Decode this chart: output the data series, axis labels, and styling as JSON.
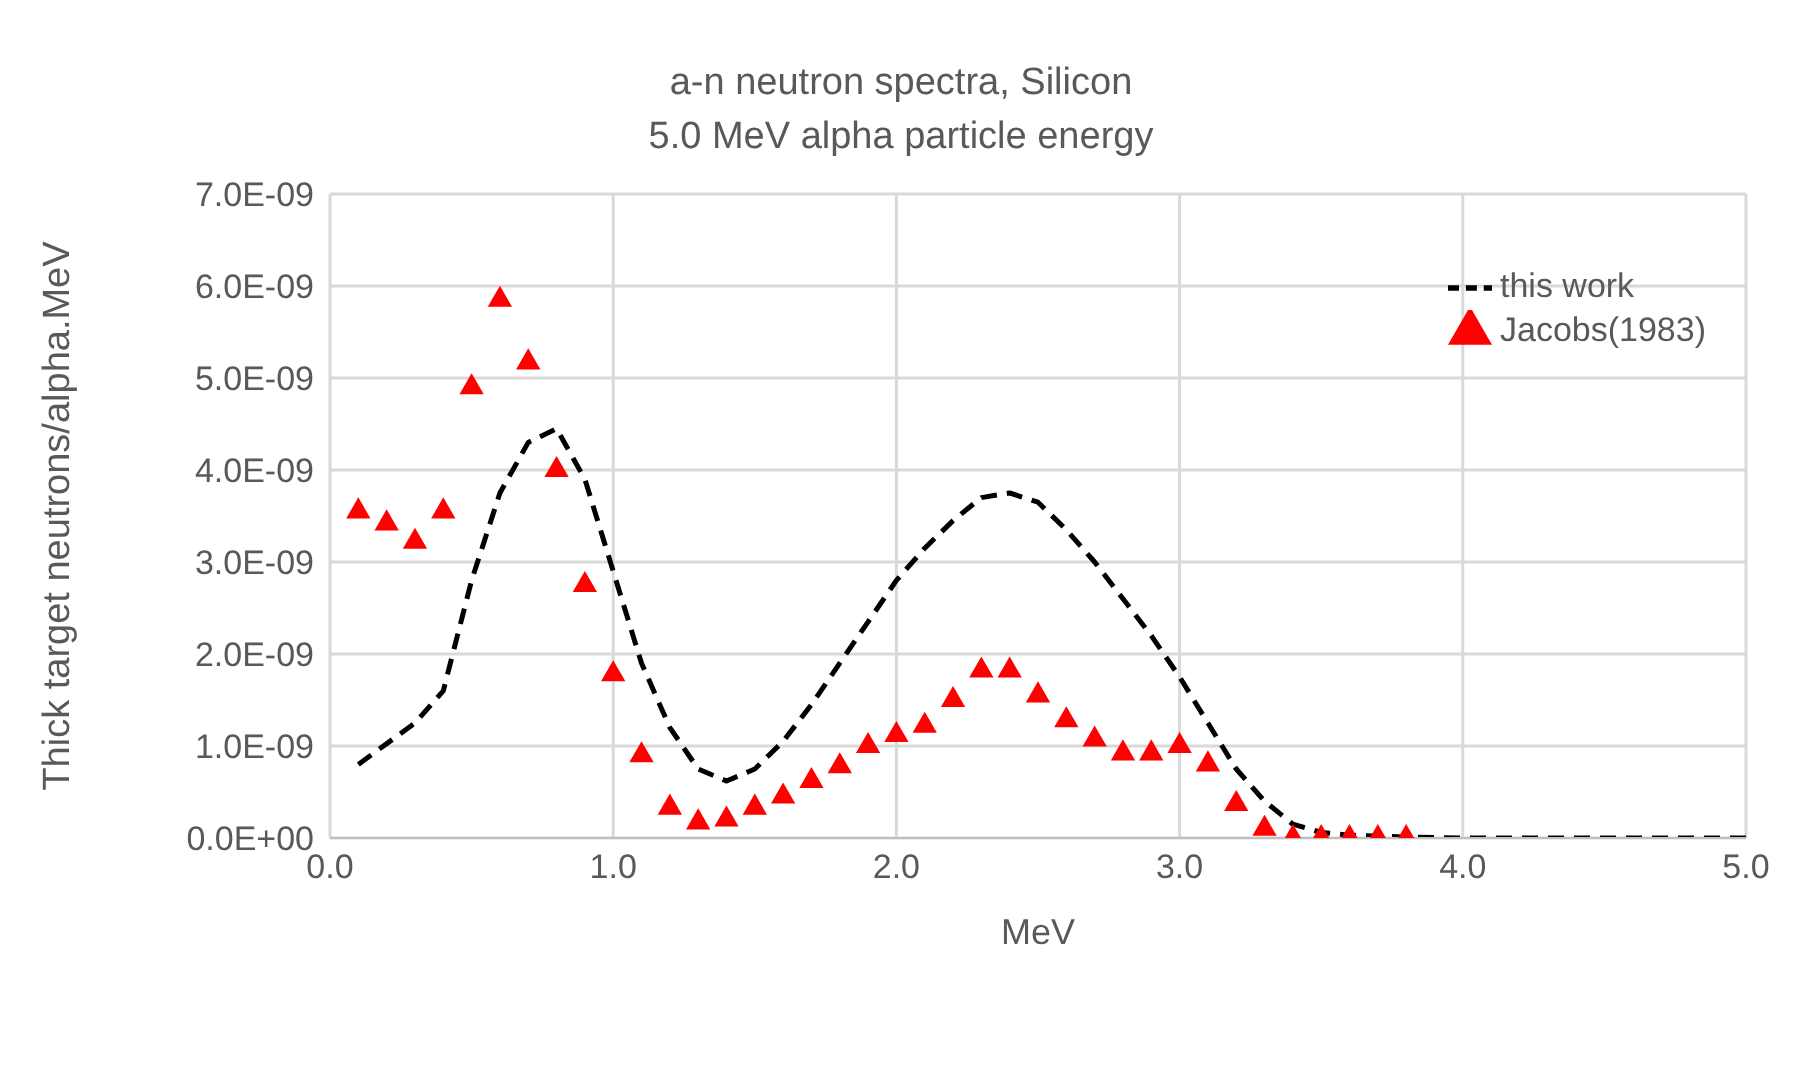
{
  "chart_data": {
    "type": "scatter",
    "title": "a-n neutron spectra, Silicon",
    "subtitle": "5.0 MeV alpha particle energy",
    "xlabel": "MeV",
    "ylabel": "Thick target neutrons/alpha.MeV",
    "xlim": [
      0,
      5
    ],
    "xticks": [
      {
        "value": 0,
        "label": "0.0"
      },
      {
        "value": 1,
        "label": "1.0"
      },
      {
        "value": 2,
        "label": "2.0"
      },
      {
        "value": 3,
        "label": "3.0"
      },
      {
        "value": 4,
        "label": "4.0"
      },
      {
        "value": 5,
        "label": "5.0"
      }
    ],
    "ylim": [
      0,
      7e-09
    ],
    "yticks": [
      {
        "value": 0,
        "label": "0.0E+00"
      },
      {
        "value": 1e-09,
        "label": "1.0E-09"
      },
      {
        "value": 2e-09,
        "label": "2.0E-09"
      },
      {
        "value": 3e-09,
        "label": "3.0E-09"
      },
      {
        "value": 4e-09,
        "label": "4.0E-09"
      },
      {
        "value": 5e-09,
        "label": "5.0E-09"
      },
      {
        "value": 6e-09,
        "label": "6.0E-09"
      },
      {
        "value": 7e-09,
        "label": "7.0E-09"
      }
    ],
    "grid": true,
    "legend": "top right",
    "series": [
      {
        "name": "this work",
        "type": "line",
        "color": "#000000",
        "line_style": "dashed",
        "marker": "none",
        "x": [
          0.1,
          0.3,
          0.4,
          0.5,
          0.6,
          0.7,
          0.8,
          0.9,
          1.0,
          1.1,
          1.2,
          1.3,
          1.4,
          1.5,
          1.6,
          1.7,
          1.8,
          1.9,
          2.0,
          2.1,
          2.2,
          2.3,
          2.4,
          2.5,
          2.6,
          2.7,
          2.8,
          2.9,
          3.0,
          3.1,
          3.2,
          3.3,
          3.4,
          3.5,
          3.6,
          3.8,
          4.0,
          5.0
        ],
        "values": [
          8e-10,
          1.25e-09,
          1.6e-09,
          2.8e-09,
          3.75e-09,
          4.3e-09,
          4.45e-09,
          3.9e-09,
          2.9e-09,
          1.9e-09,
          1.2e-09,
          7.5e-10,
          6.2e-10,
          7.5e-10,
          1.05e-09,
          1.45e-09,
          1.9e-09,
          2.35e-09,
          2.8e-09,
          3.15e-09,
          3.45e-09,
          3.7e-09,
          3.75e-09,
          3.65e-09,
          3.35e-09,
          3e-09,
          2.6e-09,
          2.2e-09,
          1.75e-09,
          1.25e-09,
          7.5e-10,
          4e-10,
          1.5e-10,
          6e-11,
          3e-11,
          1e-11,
          0,
          0
        ]
      },
      {
        "name": "Jacobs(1983)",
        "color": "#ff0000",
        "marker": "triangle",
        "x": [
          0.1,
          0.2,
          0.3,
          0.4,
          0.5,
          0.6,
          0.7,
          0.8,
          0.9,
          1.0,
          1.1,
          1.2,
          1.3,
          1.4,
          1.5,
          1.6,
          1.7,
          1.8,
          1.9,
          2.0,
          2.1,
          2.2,
          2.3,
          2.4,
          2.5,
          2.6,
          2.7,
          2.8,
          2.9,
          3.0,
          3.1,
          3.2,
          3.3,
          3.4,
          3.5,
          3.6,
          3.7,
          3.8
        ],
        "values": [
          3.55e-09,
          3.42e-09,
          3.22e-09,
          3.55e-09,
          4.9e-09,
          5.85e-09,
          5.17e-09,
          4e-09,
          2.75e-09,
          1.78e-09,
          9e-10,
          3.3e-10,
          1.7e-10,
          2e-10,
          3.3e-10,
          4.5e-10,
          6.2e-10,
          7.8e-10,
          1e-09,
          1.12e-09,
          1.22e-09,
          1.5e-09,
          1.82e-09,
          1.82e-09,
          1.55e-09,
          1.28e-09,
          1.07e-09,
          9.2e-10,
          9.2e-10,
          1e-09,
          8e-10,
          3.7e-10,
          1e-10,
          0,
          0,
          0,
          0,
          0
        ]
      }
    ]
  }
}
